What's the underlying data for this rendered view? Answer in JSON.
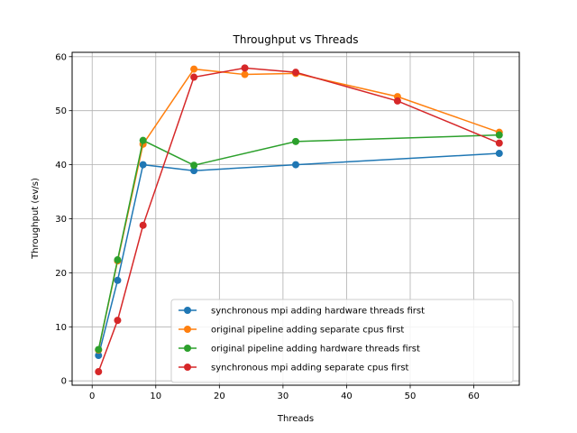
{
  "chart_data": {
    "type": "line",
    "title": "Throughput vs Threads",
    "xlabel": "Threads",
    "ylabel": "Throughput (ev/s)",
    "xlim": [
      -3.15,
      67.15
    ],
    "ylim": [
      -0.8,
      60.8
    ],
    "xticks": [
      0,
      10,
      20,
      30,
      40,
      50,
      60
    ],
    "yticks": [
      0,
      10,
      20,
      30,
      40,
      50,
      60
    ],
    "grid": true,
    "legend_position": "lower-right",
    "series": [
      {
        "name": "synchronous mpi adding hardware threads first",
        "color": "#1f77b4",
        "x": [
          1,
          4,
          8,
          16,
          32,
          64
        ],
        "y": [
          4.7,
          18.6,
          40.0,
          38.9,
          40.0,
          42.1
        ]
      },
      {
        "name": "original pipeline adding separate cpus first",
        "color": "#ff7f0e",
        "x": [
          1,
          4,
          8,
          16,
          24,
          32,
          48,
          64
        ],
        "y": [
          5.7,
          22.2,
          43.8,
          57.7,
          56.7,
          56.9,
          52.6,
          46.0
        ]
      },
      {
        "name": "original pipeline adding hardware threads first",
        "color": "#2ca02c",
        "x": [
          1,
          4,
          8,
          16,
          32,
          64
        ],
        "y": [
          5.8,
          22.4,
          44.5,
          39.9,
          44.3,
          45.5
        ]
      },
      {
        "name": "synchronous mpi adding separate cpus first",
        "color": "#d62728",
        "x": [
          1,
          4,
          8,
          16,
          24,
          32,
          48,
          64
        ],
        "y": [
          1.7,
          11.2,
          28.8,
          56.2,
          57.9,
          57.1,
          51.8,
          44.0
        ]
      }
    ]
  }
}
